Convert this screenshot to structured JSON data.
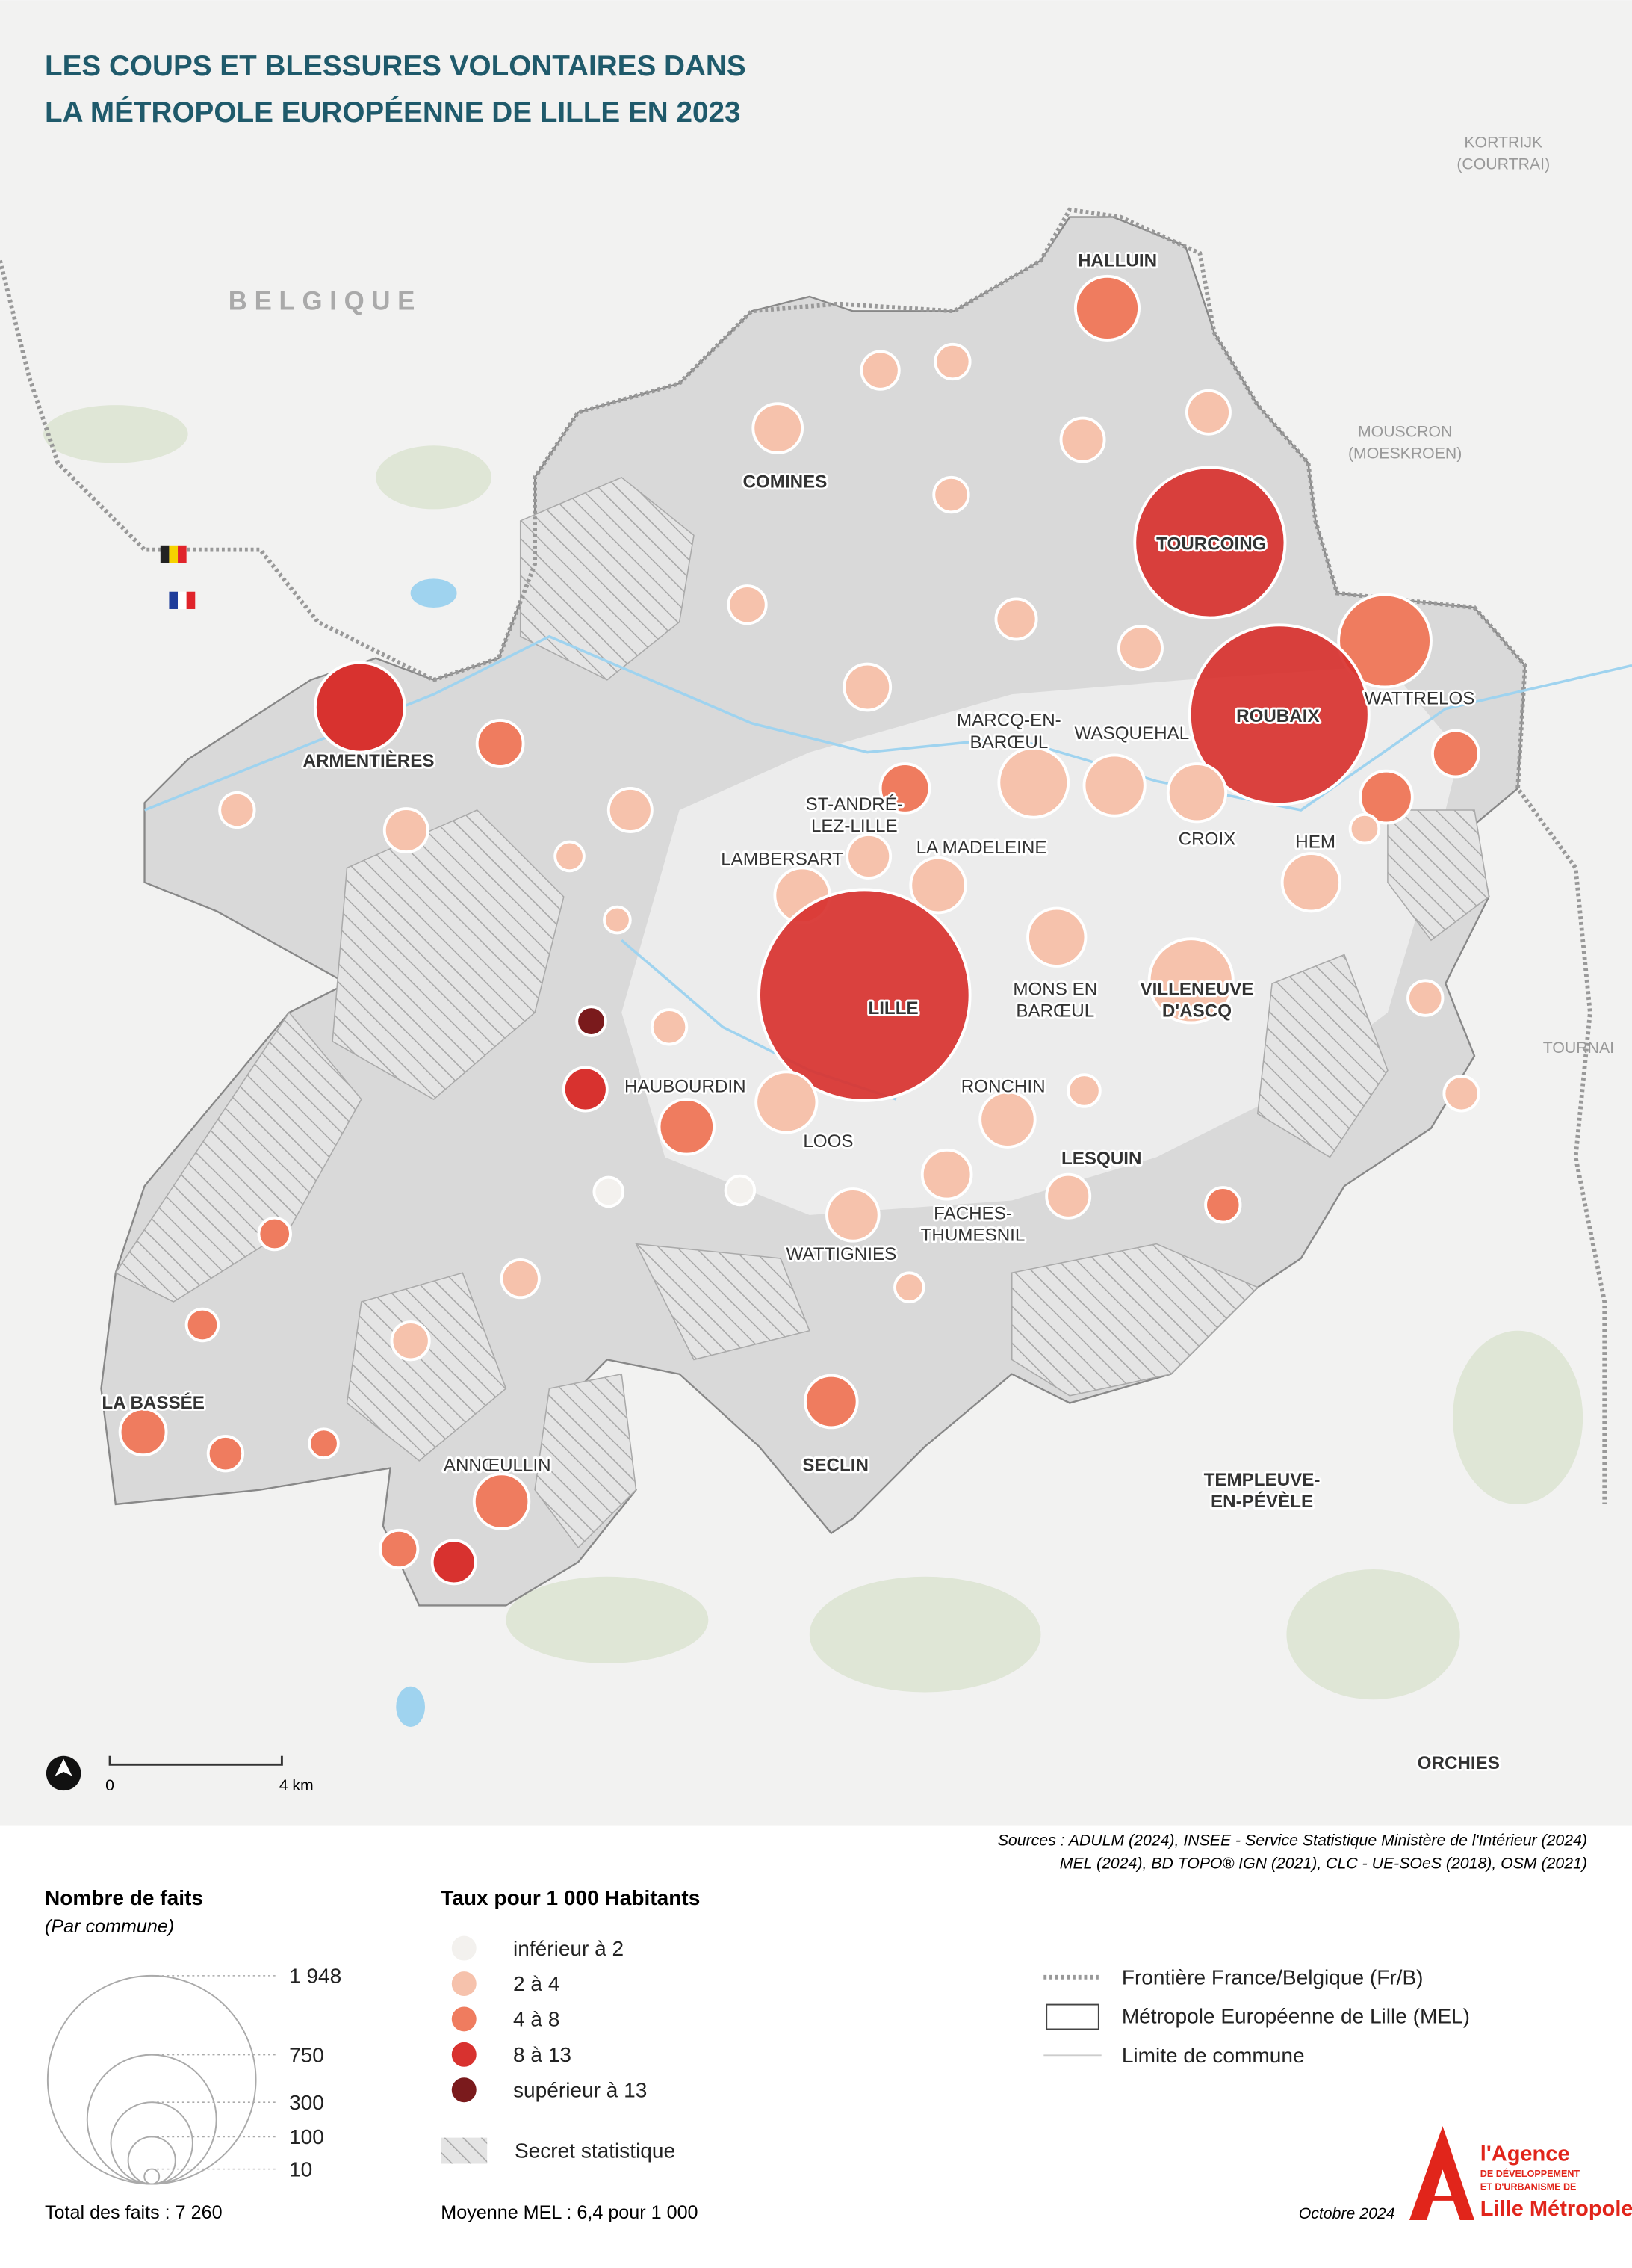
{
  "title": [
    "LES COUPS ET BLESSURES VOLONTAIRES DANS",
    "LA MÉTROPOLE EUROPÉENNE DE LILLE EN 2023"
  ],
  "places": [
    [
      "HALLUIN"
    ],
    [
      "COMINES"
    ],
    [
      "TOURCOING"
    ],
    [
      "ROUBAIX"
    ],
    [
      "ARMENTIÈRES"
    ],
    [
      "WATTRELOS"
    ],
    [
      "MARCQ-EN-",
      "BARŒUL"
    ],
    [
      "WASQUEHAL"
    ],
    [
      "ST-ANDRÉ-",
      "LEZ-LILLE"
    ],
    [
      "LA MADELEINE"
    ],
    [
      "LAMBERSART"
    ],
    [
      "CROIX"
    ],
    [
      "HEM"
    ],
    [
      "MONS EN",
      "BARŒUL"
    ],
    [
      "VILLENEUVE",
      "D'ASCQ"
    ],
    [
      "LILLE"
    ],
    [
      "HAUBOURDIN"
    ],
    [
      "RONCHIN"
    ],
    [
      "LOOS"
    ],
    [
      "LESQUIN"
    ],
    [
      "FACHES-",
      "THUMESNIL"
    ],
    [
      "WATTIGNIES"
    ],
    [
      "LA BASSÉE"
    ],
    [
      "SECLIN"
    ],
    [
      "ANNŒULLIN"
    ],
    [
      "TEMPLEUVE-",
      "EN-PÉVÈLE"
    ],
    [
      "ORCHIES"
    ],
    [
      "BELGIQUE"
    ],
    [
      "KORTRIJK",
      "(COURTRAI)"
    ],
    [
      "MOUSCRON",
      "(MOESKROEN)"
    ],
    [
      "TOURNAI"
    ]
  ],
  "scale": {
    "start": "0",
    "end": "4 km"
  },
  "sources": [
    "Sources :  ADULM (2024), INSEE - Service Statistique Ministère de l'Intérieur (2024)",
    "MEL (2024), BD TOPO® IGN (2021), CLC - UE-SOeS (2018), OSM (2021)"
  ],
  "legend_size": {
    "title": "Nombre de faits",
    "subtitle": "(Par commune)",
    "ticks": [
      {
        "value": 1948,
        "label": "1 948"
      },
      750,
      300,
      100,
      10
    ],
    "total": "Total des faits : 7 260"
  },
  "legend_rate": {
    "title": "Taux pour 1 000 Habitants",
    "items": [
      {
        "label": "inférieur à 2",
        "color": "#f3f1ee"
      },
      {
        "label": "2 à 4",
        "color": "#f6c2ac"
      },
      {
        "label": "4 à 8",
        "color": "#ef7c5f"
      },
      {
        "label": "8 à 13",
        "color": "#d8322f"
      },
      {
        "label": "supérieur à 13",
        "color": "#7a1a1c"
      }
    ],
    "secret": "Secret statistique",
    "average": "Moyenne MEL : 6,4 pour 1 000"
  },
  "legend_map": [
    "Frontière France/Belgique (Fr/B)",
    "Métropole Européenne de Lille (MEL)",
    "Limite de commune"
  ],
  "date": "Octobre 2024",
  "logo": [
    "l'Agence",
    "DE DÉVELOPPEMENT",
    "ET D'URBANISME DE",
    "Lille Métropole"
  ]
}
